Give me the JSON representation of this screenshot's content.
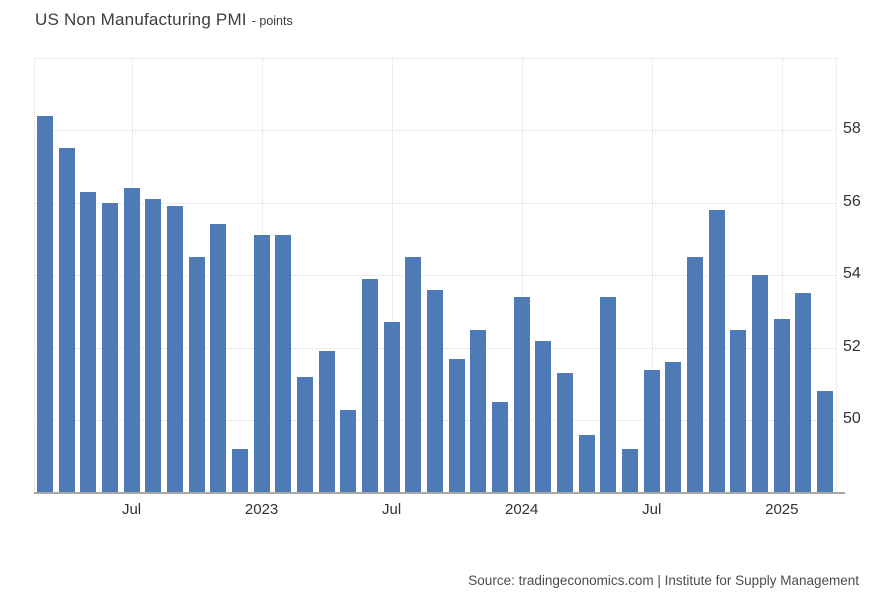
{
  "title": {
    "text": "US Non Manufacturing PMI",
    "subtitle": "- points"
  },
  "source": {
    "text": "Source: tradingeconomics.com | Institute for Supply Management"
  },
  "colors": {
    "bar": "#4e7ab5",
    "grid": "#dddddd",
    "axis_line": "#a8a8a8",
    "title_text": "#3d3d3d",
    "tick_label": "#333333",
    "source_text": "#4d4d4d",
    "background": "#ffffff"
  },
  "chart_data": {
    "type": "bar",
    "title": "US Non Manufacturing PMI",
    "unit": "points",
    "xlabel": "",
    "ylabel": "",
    "x": [
      "Mar 2022",
      "Apr 2022",
      "May 2022",
      "Jun 2022",
      "Jul 2022",
      "Aug 2022",
      "Sep 2022",
      "Oct 2022",
      "Nov 2022",
      "Dec 2022",
      "Jan 2023",
      "Feb 2023",
      "Mar 2023",
      "Apr 2023",
      "May 2023",
      "Jun 2023",
      "Jul 2023",
      "Aug 2023",
      "Sep 2023",
      "Oct 2023",
      "Nov 2023",
      "Dec 2023",
      "Jan 2024",
      "Feb 2024",
      "Mar 2024",
      "Apr 2024",
      "May 2024",
      "Jun 2024",
      "Jul 2024",
      "Aug 2024",
      "Sep 2024",
      "Oct 2024",
      "Nov 2024",
      "Dec 2024",
      "Jan 2025",
      "Feb 2025",
      "Mar 2025"
    ],
    "values": [
      58.4,
      57.5,
      56.3,
      56.0,
      56.4,
      56.1,
      55.9,
      54.5,
      55.4,
      49.2,
      55.1,
      55.1,
      51.2,
      51.9,
      50.3,
      53.9,
      52.7,
      54.5,
      53.6,
      51.7,
      52.5,
      50.5,
      53.4,
      52.2,
      51.3,
      49.6,
      53.4,
      49.2,
      51.4,
      51.6,
      54.5,
      55.8,
      52.5,
      54.0,
      52.8,
      53.5,
      50.8
    ],
    "ylim": [
      48,
      60
    ],
    "yticks": [
      58,
      56,
      54,
      52,
      50
    ],
    "gridline_values": [
      60,
      58,
      56,
      54,
      52,
      50
    ],
    "xticks": [
      {
        "index": 4,
        "label": "Jul"
      },
      {
        "index": 10,
        "label": "2023"
      },
      {
        "index": 16,
        "label": "Jul"
      },
      {
        "index": 22,
        "label": "2024"
      },
      {
        "index": 28,
        "label": "Jul"
      },
      {
        "index": 34,
        "label": "2025"
      }
    ],
    "grid": "dotted",
    "legend": "none"
  }
}
